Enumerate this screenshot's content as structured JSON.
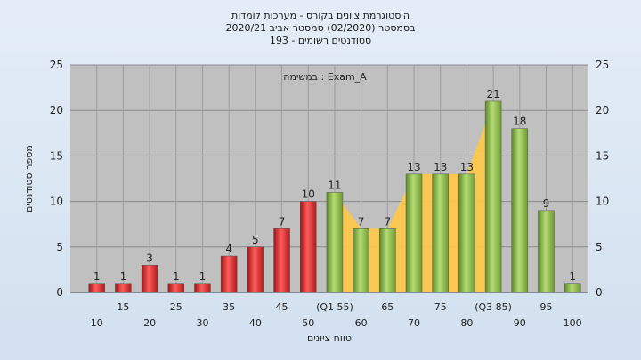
{
  "chart_data": {
    "type": "bar",
    "title_lines": [
      "היסטוגרמת ציונים בקורס - מערכות לומדות",
      "בסמסטר  (02/2020)  סמסטר אביב 2020/21",
      "סטודנטים רשומים - 193"
    ],
    "annotation": "במשימה : Exam_A",
    "xlabel": "טווח ציונים",
    "ylabel": "מספר סטודנטים",
    "ylim": [
      0,
      25
    ],
    "yticks": [
      0,
      5,
      10,
      15,
      20,
      25
    ],
    "grid": true,
    "categories": [
      "10",
      "15",
      "20",
      "25",
      "30",
      "35",
      "40",
      "45",
      "50",
      "(Q1 55)",
      "60",
      "65",
      "70",
      "75",
      "80",
      "(Q3 85)",
      "90",
      "95",
      "100"
    ],
    "values": [
      1,
      1,
      3,
      1,
      1,
      4,
      5,
      7,
      10,
      11,
      7,
      7,
      13,
      13,
      13,
      21,
      18,
      9,
      1
    ],
    "fail_color": "#d42b2b",
    "pass_color": "#8cb84a",
    "band_color": "#ffc84a",
    "plot_bg": "#c0c0c0"
  }
}
